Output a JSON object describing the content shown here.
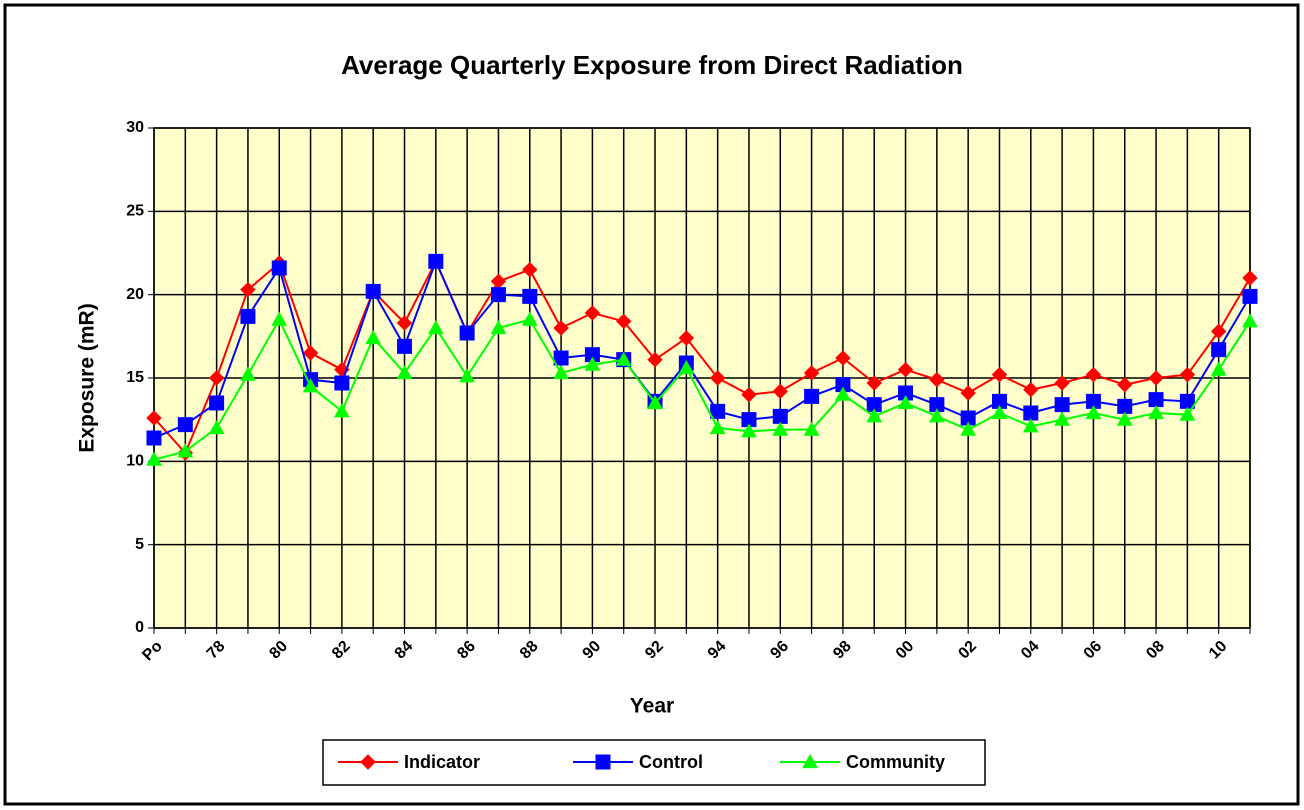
{
  "chart_data": {
    "type": "line",
    "title": "Average Quarterly Exposure from Direct Radiation",
    "x_label": "Year",
    "y_label": "Exposure (mR)",
    "categories": [
      "Po",
      null,
      "78",
      null,
      "80",
      null,
      "82",
      null,
      "84",
      null,
      "86",
      null,
      "88",
      null,
      "90",
      null,
      "92",
      null,
      "94",
      null,
      "96",
      null,
      "98",
      null,
      "00",
      null,
      "02",
      null,
      "04",
      null,
      "06",
      null,
      "08",
      null,
      "10",
      null
    ],
    "series": [
      {
        "name": "Indicator",
        "color": "#ff0000",
        "marker": "diamond",
        "values": [
          12.6,
          10.5,
          15.0,
          20.3,
          21.9,
          16.5,
          15.5,
          20.2,
          18.3,
          22.0,
          17.7,
          20.8,
          21.5,
          18.0,
          18.9,
          18.4,
          16.1,
          17.4,
          15.0,
          14.0,
          14.2,
          15.3,
          16.2,
          14.7,
          15.5,
          14.9,
          14.1,
          15.2,
          14.3,
          14.7,
          15.2,
          14.6,
          15.0,
          15.2,
          17.8,
          21.0
        ]
      },
      {
        "name": "Control",
        "color": "#0000ff",
        "marker": "square",
        "values": [
          11.4,
          12.2,
          13.5,
          18.7,
          21.6,
          14.9,
          14.7,
          20.2,
          16.9,
          22.0,
          17.7,
          20.0,
          19.9,
          16.2,
          16.4,
          16.1,
          13.6,
          15.9,
          13.0,
          12.5,
          12.7,
          13.9,
          14.6,
          13.4,
          14.1,
          13.4,
          12.6,
          13.6,
          12.9,
          13.4,
          13.6,
          13.3,
          13.7,
          13.6,
          16.7,
          19.9
        ]
      },
      {
        "name": "Community",
        "color": "#00ff00",
        "marker": "triangle",
        "values": [
          10.1,
          10.6,
          12.0,
          15.2,
          18.5,
          14.5,
          13.0,
          17.4,
          15.3,
          18.0,
          15.1,
          18.0,
          18.5,
          15.3,
          15.8,
          16.1,
          13.5,
          15.6,
          12.0,
          11.8,
          11.9,
          11.9,
          14.0,
          12.7,
          13.5,
          12.7,
          11.9,
          12.9,
          12.1,
          12.5,
          12.9,
          12.5,
          12.9,
          12.8,
          15.5,
          18.4
        ]
      }
    ],
    "ylim": [
      0,
      30
    ],
    "yticks": [
      0,
      5,
      10,
      15,
      20,
      25,
      30
    ],
    "grid": true,
    "plot_background": "#ffffcc",
    "legend": "bottom"
  }
}
